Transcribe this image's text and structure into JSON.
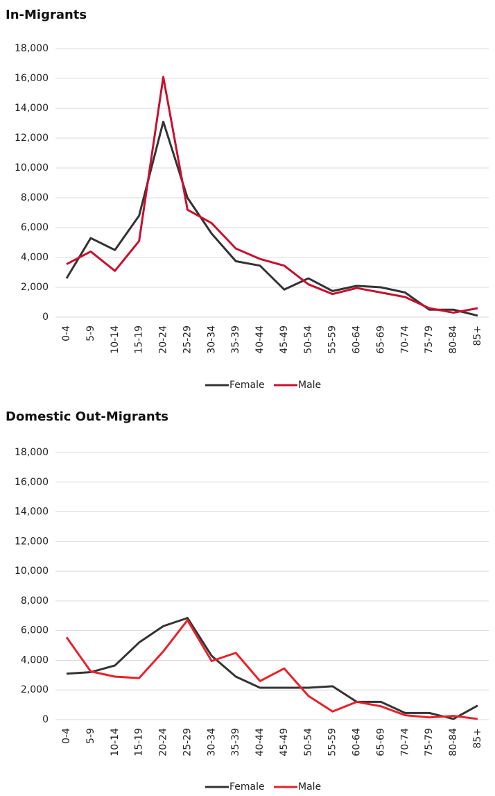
{
  "chart_data": [
    {
      "type": "line",
      "title": "In-Migrants",
      "categories": [
        "0-4",
        "5-9",
        "10-14",
        "15-19",
        "20-24",
        "25-29",
        "30-34",
        "35-39",
        "40-44",
        "45-49",
        "50-54",
        "55-59",
        "60-64",
        "65-69",
        "70-74",
        "75-79",
        "80-84",
        "85+"
      ],
      "series": [
        {
          "name": "Female",
          "color": "#333333",
          "values": [
            2600,
            5300,
            4500,
            6800,
            13100,
            8000,
            5600,
            3750,
            3450,
            1850,
            2600,
            1750,
            2100,
            2000,
            1650,
            500,
            500,
            100
          ]
        },
        {
          "name": "Male",
          "color": "#c8102e",
          "values": [
            3550,
            4400,
            3100,
            5100,
            16100,
            7200,
            6300,
            4600,
            3900,
            3450,
            2200,
            1550,
            1950,
            1650,
            1350,
            600,
            300,
            600
          ]
        }
      ],
      "ylim": [
        0,
        18000
      ],
      "yticks": [
        0,
        {
          "value": 2000,
          "label": "2,000"
        },
        {
          "value": 4000,
          "label": "4,000"
        },
        {
          "value": 6000,
          "label": "6,000"
        },
        {
          "value": 8000,
          "label": "8,000"
        },
        {
          "value": 10000,
          "label": "10,000"
        },
        {
          "value": 12000,
          "label": "12,000"
        },
        {
          "value": 14000,
          "label": "14,000"
        },
        {
          "value": 16000,
          "label": "16,000"
        },
        {
          "value": 18000,
          "label": "18,000"
        }
      ],
      "grid": true,
      "legend": "bottom"
    },
    {
      "type": "line",
      "title": "Domestic Out-Migrants",
      "categories": [
        "0-4",
        "5-9",
        "10-14",
        "15-19",
        "20-24",
        "25-29",
        "30-34",
        "35-39",
        "40-44",
        "45-49",
        "50-54",
        "55-59",
        "60-64",
        "65-69",
        "70-74",
        "75-79",
        "80-84",
        "85+"
      ],
      "series": [
        {
          "name": "Female",
          "color": "#333333",
          "values": [
            3100,
            3200,
            3650,
            5200,
            6300,
            6850,
            4300,
            2900,
            2150,
            2150,
            2150,
            2250,
            1200,
            1200,
            450,
            450,
            50,
            950
          ]
        },
        {
          "name": "Male",
          "color": "#e8212a",
          "values": [
            5550,
            3250,
            2900,
            2800,
            4600,
            6700,
            3950,
            4500,
            2600,
            3450,
            1600,
            550,
            1200,
            900,
            300,
            150,
            250,
            50
          ]
        }
      ],
      "ylim": [
        0,
        18000
      ],
      "yticks": [
        0,
        {
          "value": 2000,
          "label": "2,000"
        },
        {
          "value": 4000,
          "label": "4,000"
        },
        {
          "value": 6000,
          "label": "6,000"
        },
        {
          "value": 8000,
          "label": "8,000"
        },
        {
          "value": 10000,
          "label": "10,000"
        },
        {
          "value": 12000,
          "label": "12,000"
        },
        {
          "value": 14000,
          "label": "14,000"
        },
        {
          "value": 16000,
          "label": "16,000"
        },
        {
          "value": 18000,
          "label": "18,000"
        }
      ],
      "grid": true,
      "legend": "bottom"
    }
  ]
}
